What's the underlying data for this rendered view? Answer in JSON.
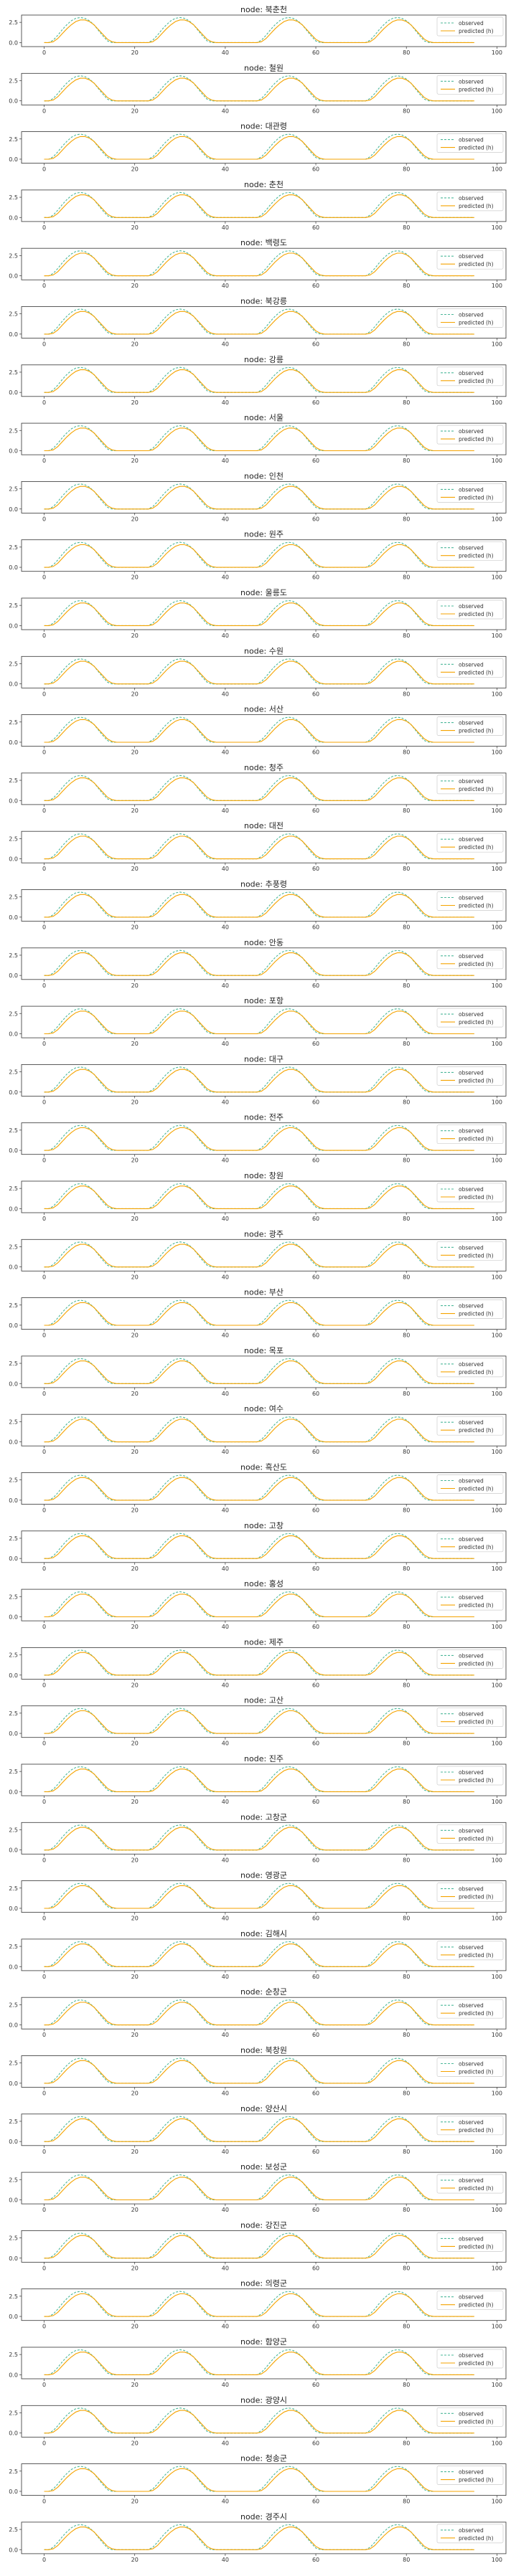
{
  "chart_data": {
    "type": "line",
    "title_prefix": "node: ",
    "xlim": [
      -5,
      102
    ],
    "ylim": [
      -0.5,
      3.4
    ],
    "xticks": [
      0,
      20,
      40,
      60,
      80,
      100
    ],
    "yticks": [
      0.0,
      2.5
    ],
    "ytick_labels": [
      "0.0",
      "2.5"
    ],
    "legend": {
      "placement": "right",
      "entries": [
        {
          "label": "observed",
          "color": "#4db89a",
          "style": "dashed"
        },
        {
          "label": "predicted (h)",
          "color": "#f5a300",
          "style": "solid"
        }
      ]
    },
    "panels": [
      "북춘천",
      "철원",
      "대관령",
      "춘천",
      "백령도",
      "북강릉",
      "강릉",
      "서울",
      "인천",
      "원주",
      "울릉도",
      "수원",
      "서산",
      "청주",
      "대전",
      "추풍령",
      "안동",
      "포항",
      "대구",
      "전주",
      "창원",
      "광주",
      "부산",
      "목포",
      "여수",
      "흑산도",
      "고창",
      "홍성",
      "제주",
      "고산",
      "진주",
      "고창군",
      "영광군",
      "김해시",
      "순창군",
      "북창원",
      "양산시",
      "보성군",
      "강진군",
      "의령군",
      "함양군",
      "광양시",
      "청송군",
      "경주시"
    ],
    "series": [
      {
        "name": "observed",
        "x": [
          0,
          1,
          2,
          3,
          4,
          5,
          6,
          7,
          8,
          9,
          10,
          11,
          12,
          13,
          14,
          15,
          16,
          17,
          18,
          19,
          20,
          21,
          22,
          23,
          24,
          25,
          26,
          27,
          28,
          29,
          30,
          31,
          32,
          33,
          34,
          35,
          36,
          37,
          38,
          39,
          40,
          41,
          42,
          43,
          44,
          45,
          46,
          47,
          48,
          49,
          50,
          51,
          52,
          53,
          54,
          55,
          56,
          57,
          58,
          59,
          60,
          61,
          62,
          63,
          64,
          65,
          66,
          67,
          68,
          69,
          70,
          71,
          72,
          73,
          74,
          75,
          76,
          77,
          78,
          79,
          80,
          81,
          82,
          83,
          84,
          85,
          86,
          87,
          88,
          89,
          90,
          91,
          92,
          93,
          94,
          95
        ],
        "y": [
          0,
          0,
          0.3,
          0.9,
          1.6,
          2.2,
          2.7,
          3.0,
          3.1,
          3.0,
          2.7,
          2.2,
          1.5,
          0.8,
          0.2,
          0,
          0,
          0,
          0,
          0,
          0,
          0,
          0,
          0,
          0.3,
          0.9,
          1.6,
          2.2,
          2.7,
          3.0,
          3.1,
          3.0,
          2.7,
          2.2,
          1.5,
          0.8,
          0.2,
          0,
          0,
          0,
          0,
          0,
          0,
          0,
          0,
          0,
          0,
          0,
          0.3,
          0.9,
          1.6,
          2.2,
          2.7,
          3.0,
          3.1,
          3.0,
          2.7,
          2.2,
          1.5,
          0.8,
          0.2,
          0,
          0,
          0,
          0,
          0,
          0,
          0,
          0,
          0,
          0,
          0,
          0.3,
          0.9,
          1.6,
          2.2,
          2.7,
          3.0,
          3.1,
          3.0,
          2.7,
          2.2,
          1.5,
          0.8,
          0.2,
          0,
          0,
          0,
          0,
          0,
          0,
          0,
          0,
          0,
          0,
          0
        ]
      },
      {
        "name": "predicted (h)",
        "x": [
          0,
          1,
          2,
          3,
          4,
          5,
          6,
          7,
          8,
          9,
          10,
          11,
          12,
          13,
          14,
          15,
          16,
          17,
          18,
          19,
          20,
          21,
          22,
          23,
          24,
          25,
          26,
          27,
          28,
          29,
          30,
          31,
          32,
          33,
          34,
          35,
          36,
          37,
          38,
          39,
          40,
          41,
          42,
          43,
          44,
          45,
          46,
          47,
          48,
          49,
          50,
          51,
          52,
          53,
          54,
          55,
          56,
          57,
          58,
          59,
          60,
          61,
          62,
          63,
          64,
          65,
          66,
          67,
          68,
          69,
          70,
          71,
          72,
          73,
          74,
          75,
          76,
          77,
          78,
          79,
          80,
          81,
          82,
          83,
          84,
          85,
          86,
          87,
          88,
          89,
          90,
          91,
          92,
          93,
          94,
          95
        ],
        "y": [
          0,
          0,
          0.1,
          0.5,
          1.1,
          1.7,
          2.2,
          2.6,
          2.8,
          2.8,
          2.6,
          2.2,
          1.6,
          1.0,
          0.4,
          0.1,
          0,
          0,
          0,
          0,
          0,
          0,
          0,
          0,
          0.1,
          0.5,
          1.1,
          1.7,
          2.2,
          2.6,
          2.8,
          2.8,
          2.6,
          2.2,
          1.6,
          1.0,
          0.4,
          0.1,
          0,
          0,
          0,
          0,
          0,
          0,
          0,
          0,
          0,
          0,
          0.1,
          0.5,
          1.1,
          1.7,
          2.2,
          2.6,
          2.8,
          2.8,
          2.6,
          2.2,
          1.6,
          1.0,
          0.4,
          0.1,
          0,
          0,
          0,
          0,
          0,
          0,
          0,
          0,
          0,
          0,
          0.1,
          0.5,
          1.1,
          1.7,
          2.2,
          2.6,
          2.8,
          2.8,
          2.6,
          2.2,
          1.6,
          1.0,
          0.4,
          0.1,
          0,
          0,
          0,
          0,
          0,
          0,
          0,
          0,
          0,
          0
        ]
      }
    ]
  }
}
